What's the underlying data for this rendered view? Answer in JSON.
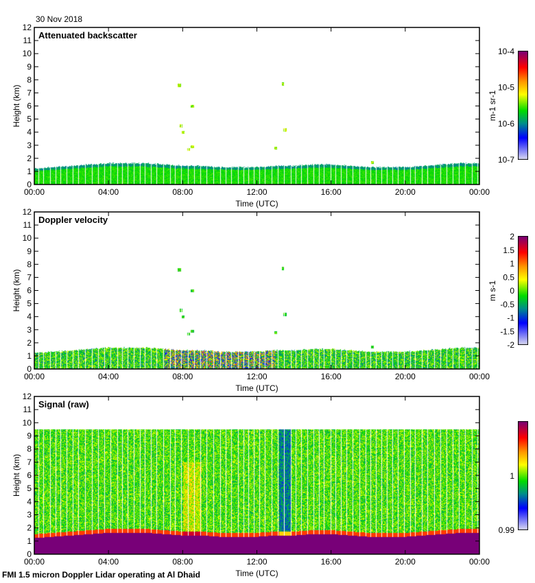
{
  "header": {
    "date": "30 Nov 2018"
  },
  "footer": "FMI 1.5 micron Doppler Lidar operating at Al Dhaid",
  "chart_data": [
    {
      "type": "heatmap",
      "title": "Attenuated backscatter",
      "xlabel": "Time (UTC)",
      "ylabel": "Height (km)",
      "xticks": [
        "00:00",
        "04:00",
        "08:00",
        "12:00",
        "16:00",
        "20:00",
        "00:00"
      ],
      "xlim": [
        0,
        24
      ],
      "ylim": [
        0,
        12
      ],
      "yticks": [
        0,
        1,
        2,
        3,
        4,
        5,
        6,
        7,
        8,
        9,
        10,
        11,
        12
      ],
      "colorbar": {
        "label": "m-1 sr-1",
        "ticks": [
          "10-7",
          "10-6",
          "10-5",
          "10-4"
        ],
        "scale": "log",
        "range": [
          1e-07,
          0.0001
        ]
      },
      "layer_top_km_hourly": [
        1.2,
        1.3,
        1.4,
        1.5,
        1.6,
        1.6,
        1.6,
        1.5,
        1.4,
        1.4,
        1.3,
        1.3,
        1.3,
        1.4,
        1.4,
        1.5,
        1.5,
        1.4,
        1.3,
        1.3,
        1.3,
        1.4,
        1.5,
        1.6,
        1.6
      ]
    },
    {
      "type": "heatmap",
      "title": "Doppler velocity",
      "xlabel": "Time (UTC)",
      "ylabel": "Height (km)",
      "xticks": [
        "00:00",
        "04:00",
        "08:00",
        "12:00",
        "16:00",
        "20:00",
        "00:00"
      ],
      "xlim": [
        0,
        24
      ],
      "ylim": [
        0,
        12
      ],
      "yticks": [
        0,
        1,
        2,
        3,
        4,
        5,
        6,
        7,
        8,
        9,
        10,
        11,
        12
      ],
      "colorbar": {
        "label": "m s-1",
        "ticks": [
          "-2",
          "-1.5",
          "-1",
          "-0.5",
          "0",
          "0.5",
          "1",
          "1.5",
          "2"
        ],
        "scale": "linear",
        "range": [
          -2,
          2
        ]
      }
    },
    {
      "type": "heatmap",
      "title": "Signal (raw)",
      "xlabel": "Time (UTC)",
      "ylabel": "Height (km)",
      "xticks": [
        "00:00",
        "04:00",
        "08:00",
        "12:00",
        "16:00",
        "20:00",
        "00:00"
      ],
      "xlim": [
        0,
        24
      ],
      "ylim": [
        0,
        12
      ],
      "yticks": [
        0,
        1,
        2,
        3,
        4,
        5,
        6,
        7,
        8,
        9,
        10,
        11,
        12
      ],
      "signal_top_km": 9.5,
      "colorbar": {
        "label": "",
        "ticks": [
          "0.99",
          "1"
        ],
        "scale": "linear",
        "range": [
          0.99,
          1.01
        ]
      }
    }
  ]
}
